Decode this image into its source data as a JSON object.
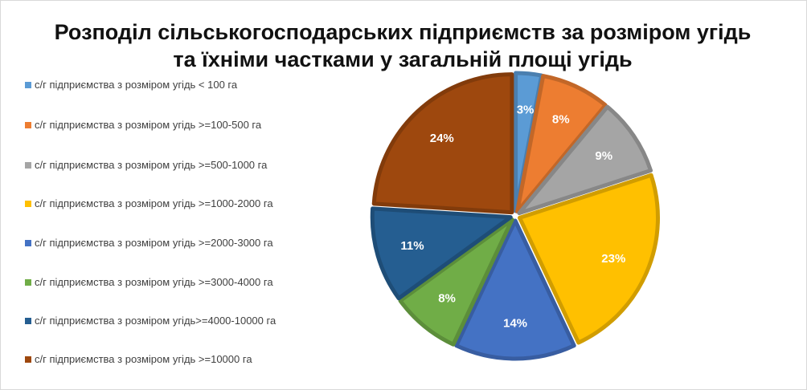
{
  "title": "Розподіл сільськогосподарських підприємств за розміром угідь та їхніми частками у загальній площі угідь",
  "chart_data": {
    "type": "pie",
    "title": "Розподіл сільськогосподарських підприємств за розміром угідь та їхніми частками у загальній площі угідь",
    "legend_position": "left",
    "slices": [
      {
        "label": "с/г підприємства з розміром угідь < 100 га",
        "value": 3,
        "display": "3%",
        "color": "#5B9BD5"
      },
      {
        "label": "с/г підприємства  з розміром угідь >=100-500 га",
        "value": 8,
        "display": "8%",
        "color": "#ED7D31"
      },
      {
        "label": "с/г підприємства   з розміром угідь >=500-1000 га",
        "value": 9,
        "display": "9%",
        "color": "#A5A5A5"
      },
      {
        "label": "с/г підприємства  з розміром угідь >=1000-2000 га",
        "value": 23,
        "display": "23%",
        "color": "#FFC000"
      },
      {
        "label": "с/г підприємства  з розміром угідь >=2000-3000 га",
        "value": 14,
        "display": "14%",
        "color": "#4472C4"
      },
      {
        "label": "с/г підприємства  з розміром угідь >=3000-4000 га",
        "value": 8,
        "display": "8%",
        "color": "#70AD47"
      },
      {
        "label": "с/г підприємства    з розміром угідь>=4000-10000 га",
        "value": 11,
        "display": "11%",
        "color": "#255E91"
      },
      {
        "label": "с/г підприємства   з розміром угідь >=10000 га",
        "value": 24,
        "display": "24%",
        "color": "#9E480E"
      }
    ]
  }
}
